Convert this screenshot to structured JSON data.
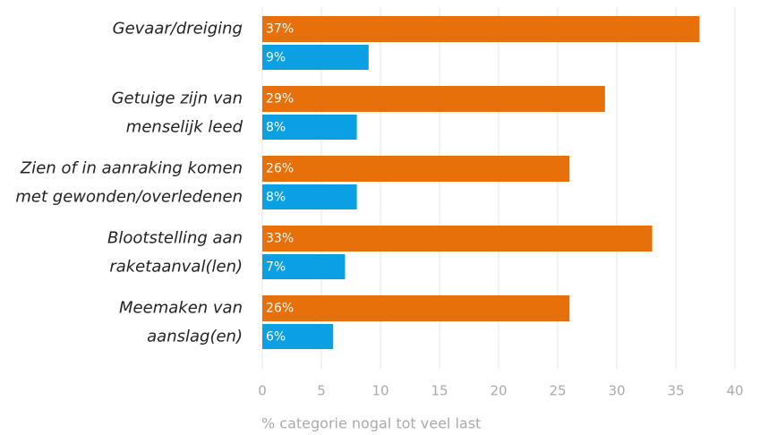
{
  "chart_data": {
    "type": "hbar",
    "categories": [
      [
        "Gevaar/dreiging"
      ],
      [
        "Getuige zijn van",
        "menselijk leed"
      ],
      [
        "Zien of in aanraking komen",
        "met gewonden/overledenen"
      ],
      [
        "Blootstelling aan",
        "raketaanval(len)"
      ],
      [
        "Meemaken van",
        "aanslag(en)"
      ]
    ],
    "series": [
      {
        "color": "#e8700a",
        "values": [
          37,
          29,
          26,
          33,
          26
        ],
        "value_labels": [
          "37%",
          "29%",
          "26%",
          "33%",
          "26%"
        ]
      },
      {
        "color": "#0aa0e2",
        "values": [
          9,
          8,
          8,
          7,
          6
        ],
        "value_labels": [
          "9%",
          "8%",
          "8%",
          "7%",
          "6%"
        ]
      }
    ],
    "xlim": [
      0,
      40
    ],
    "xticks": [
      0,
      5,
      10,
      15,
      20,
      25,
      30,
      35,
      40
    ],
    "xlabel": "% categorie nogal tot veel last",
    "grid": true
  }
}
